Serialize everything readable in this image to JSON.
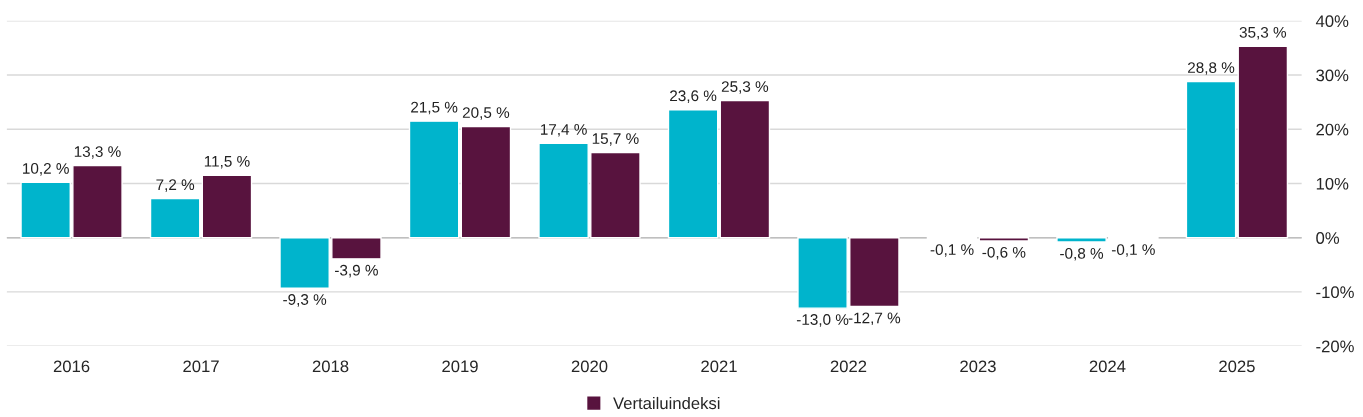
{
  "chart_data": {
    "type": "bar",
    "categories": [
      "2016",
      "2017",
      "2018",
      "2019",
      "2020",
      "2021",
      "2022",
      "2023",
      "2024",
      "2025"
    ],
    "series": [
      {
        "color": "#00b4cc",
        "values": [
          10.2,
          7.2,
          -9.3,
          21.5,
          17.4,
          23.6,
          -13.0,
          -0.1,
          -0.8,
          28.8
        ],
        "value_labels": [
          "10,2 %",
          "7,2 %",
          "-9,3 %",
          "21,5 %",
          "17,4 %",
          "23,6 %",
          "-13,0 %",
          "-0,1 %",
          "-0,8 %",
          "28,8 %"
        ]
      },
      {
        "name": "Vertailuindeksi",
        "color": "#58133e",
        "values": [
          13.3,
          11.5,
          -3.9,
          20.5,
          15.7,
          25.3,
          -12.7,
          -0.6,
          -0.1,
          35.3
        ],
        "value_labels": [
          "13,3 %",
          "11,5 %",
          "-3,9 %",
          "20,5 %",
          "15,7 %",
          "25,3 %",
          "-12,7 %",
          "-0,6 %",
          "-0,1 %",
          "35,3 %"
        ]
      }
    ],
    "ylim": [
      -20,
      40
    ],
    "yticks": [
      {
        "value": -20,
        "label": "-20%"
      },
      {
        "value": -10,
        "label": "-10%"
      },
      {
        "value": 0,
        "label": "0%"
      },
      {
        "value": 10,
        "label": "10%"
      },
      {
        "value": 20,
        "label": "20%"
      },
      {
        "value": 30,
        "label": "30%"
      },
      {
        "value": 40,
        "label": "40%"
      }
    ],
    "grid": "y",
    "legend": "bottom"
  }
}
